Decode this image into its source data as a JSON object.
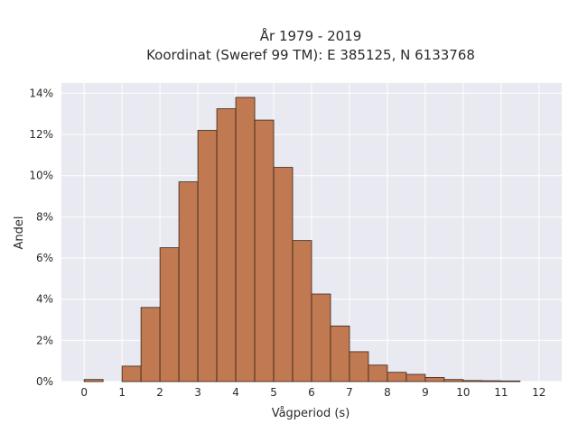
{
  "chart_data": {
    "type": "bar",
    "title": "År 1979 - 2019",
    "subtitle": "Koordinat (Sweref 99 TM): E 385125, N 6133768",
    "xlabel": "Vågperiod (s)",
    "ylabel": "Andel",
    "xlim": [
      -0.6,
      12.6
    ],
    "ylim": [
      0,
      14.5
    ],
    "y_unit": "%",
    "bin_width": 0.5,
    "bin_starts": [
      0,
      0.5,
      1,
      1.5,
      2,
      2.5,
      3,
      3.5,
      4,
      4.5,
      5,
      5.5,
      6,
      6.5,
      7,
      7.5,
      8,
      8.5,
      9,
      9.5,
      10,
      10.5,
      11,
      11.5
    ],
    "values": [
      0.1,
      0,
      0.75,
      3.6,
      6.5,
      9.7,
      12.2,
      13.25,
      13.8,
      12.7,
      10.4,
      6.85,
      4.25,
      2.7,
      1.45,
      0.8,
      0.45,
      0.35,
      0.2,
      0.1,
      0.05,
      0.04,
      0.03,
      0
    ],
    "x_ticks": [
      0,
      1,
      2,
      3,
      4,
      5,
      6,
      7,
      8,
      9,
      10,
      11,
      12
    ],
    "x_tick_labels": [
      "0",
      "1",
      "2",
      "3",
      "4",
      "5",
      "6",
      "7",
      "8",
      "9",
      "10",
      "11",
      "12"
    ],
    "y_ticks": [
      0,
      2,
      4,
      6,
      8,
      10,
      12,
      14
    ],
    "y_tick_labels": [
      "0%",
      "2%",
      "4%",
      "6%",
      "8%",
      "10%",
      "12%",
      "14%"
    ],
    "grid": true,
    "bar_color": "#c07950",
    "bar_edge_color": "#3a2418",
    "plot_background": "#e9e9f1",
    "grid_color": "#ffffff"
  }
}
